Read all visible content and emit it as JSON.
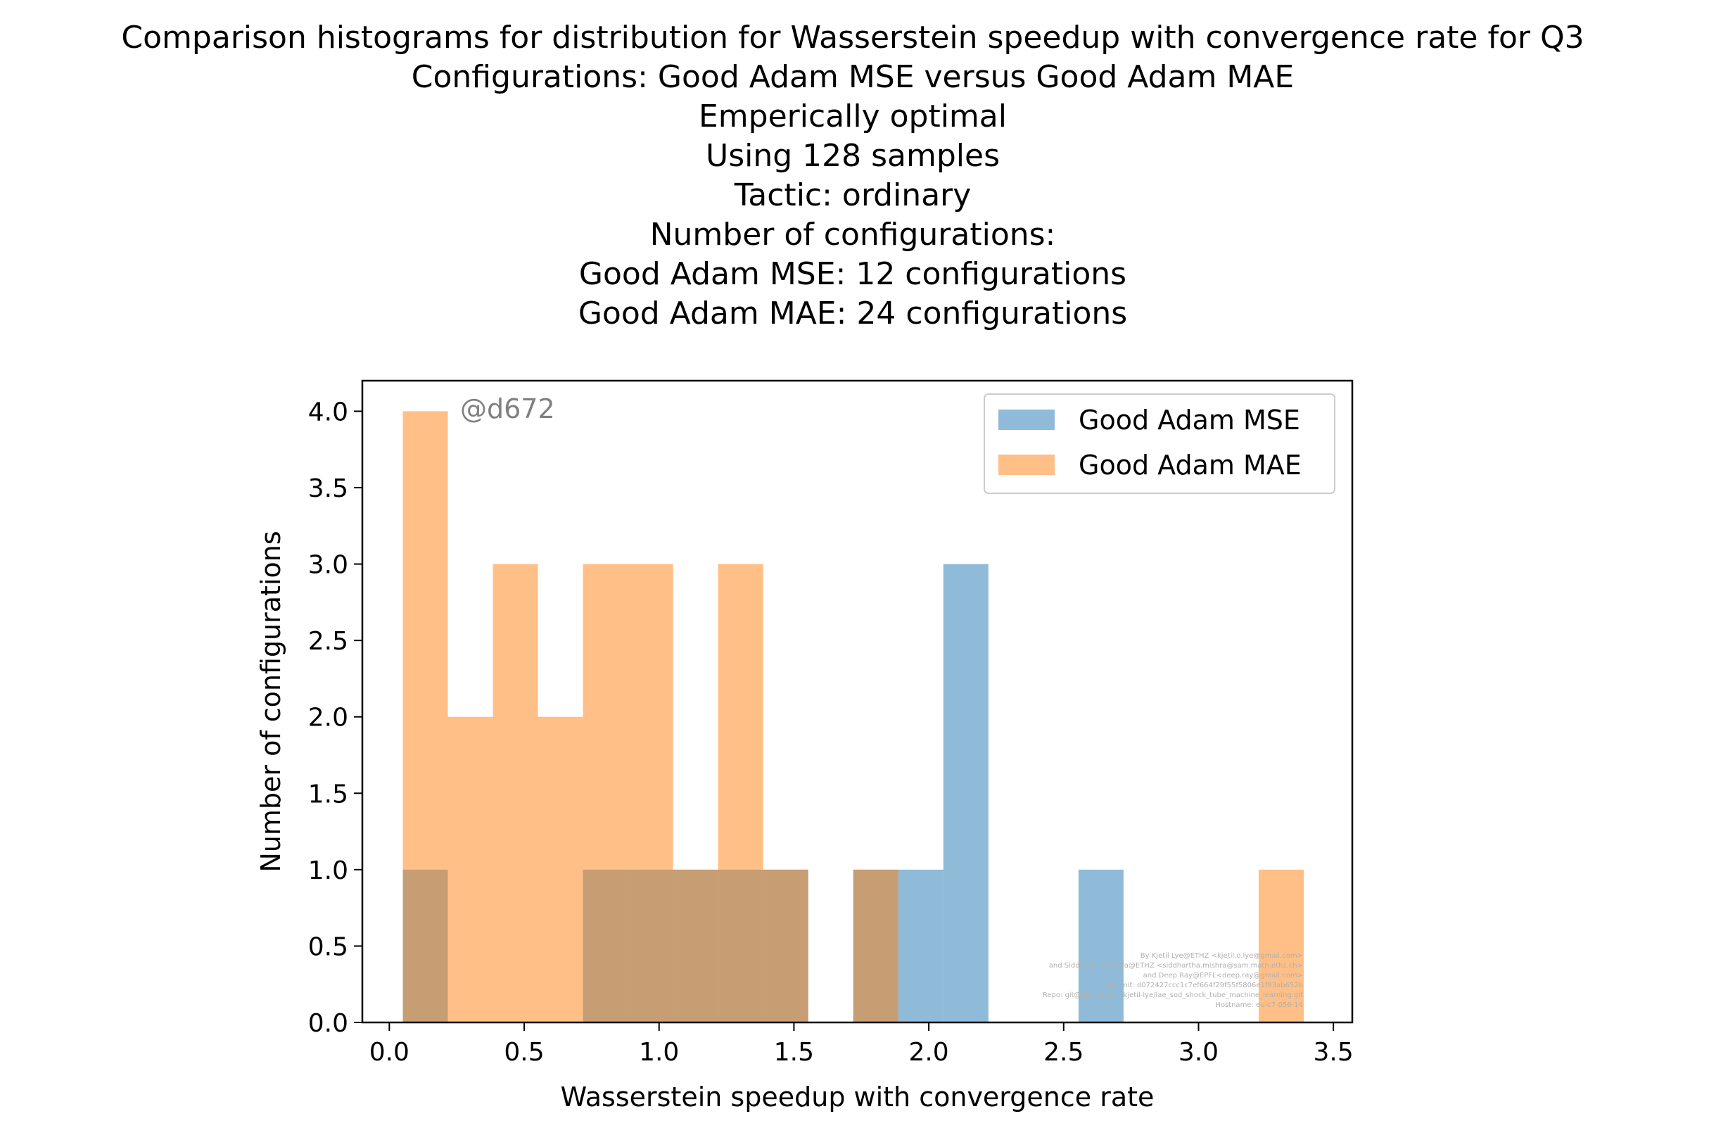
{
  "chart_data": {
    "type": "bar",
    "title_lines": [
      "Comparison histograms for distribution for Wasserstein speedup with convergence rate for Q3",
      "Configurations: Good Adam MSE versus Good Adam MAE",
      "Emperically optimal",
      "Using 128 samples",
      "Tactic: ordinary",
      "Number of configurations:",
      "Good Adam MSE: 12 configurations",
      "Good Adam MAE: 24 configurations"
    ],
    "xlabel": "Wasserstein speedup with convergence rate",
    "ylabel": "Number of configurations",
    "xlim": [
      -0.1,
      3.57
    ],
    "ylim": [
      0,
      4.2
    ],
    "xticks": [
      "0.0",
      "0.5",
      "1.0",
      "1.5",
      "2.0",
      "2.5",
      "3.0",
      "3.5"
    ],
    "yticks": [
      "0.0",
      "0.5",
      "1.0",
      "1.5",
      "2.0",
      "2.5",
      "3.0",
      "3.5",
      "4.0"
    ],
    "grid": false,
    "legend_position": "upper right",
    "series": [
      {
        "name": "Good Adam MSE",
        "color": "#1f77b4",
        "alpha": 0.5,
        "bins": [
          {
            "x0": 0.05,
            "x1": 0.217,
            "count": 1
          },
          {
            "x0": 0.217,
            "x1": 0.384,
            "count": 0
          },
          {
            "x0": 0.384,
            "x1": 0.551,
            "count": 0
          },
          {
            "x0": 0.551,
            "x1": 0.718,
            "count": 0
          },
          {
            "x0": 0.718,
            "x1": 0.885,
            "count": 1
          },
          {
            "x0": 0.885,
            "x1": 1.052,
            "count": 1
          },
          {
            "x0": 1.052,
            "x1": 1.219,
            "count": 1
          },
          {
            "x0": 1.219,
            "x1": 1.386,
            "count": 1
          },
          {
            "x0": 1.386,
            "x1": 1.553,
            "count": 1
          },
          {
            "x0": 1.553,
            "x1": 1.72,
            "count": 0
          },
          {
            "x0": 1.72,
            "x1": 1.887,
            "count": 1
          },
          {
            "x0": 1.887,
            "x1": 2.054,
            "count": 1
          },
          {
            "x0": 2.054,
            "x1": 2.221,
            "count": 3
          },
          {
            "x0": 2.221,
            "x1": 2.388,
            "count": 0
          },
          {
            "x0": 2.388,
            "x1": 2.555,
            "count": 0
          },
          {
            "x0": 2.555,
            "x1": 2.722,
            "count": 1
          }
        ]
      },
      {
        "name": "Good Adam MAE",
        "color": "#ff7f0e",
        "alpha": 0.5,
        "bins": [
          {
            "x0": 0.05,
            "x1": 0.217,
            "count": 4
          },
          {
            "x0": 0.217,
            "x1": 0.384,
            "count": 2
          },
          {
            "x0": 0.384,
            "x1": 0.551,
            "count": 3
          },
          {
            "x0": 0.551,
            "x1": 0.718,
            "count": 2
          },
          {
            "x0": 0.718,
            "x1": 0.885,
            "count": 3
          },
          {
            "x0": 0.885,
            "x1": 1.052,
            "count": 3
          },
          {
            "x0": 1.052,
            "x1": 1.219,
            "count": 1
          },
          {
            "x0": 1.219,
            "x1": 1.386,
            "count": 3
          },
          {
            "x0": 1.386,
            "x1": 1.553,
            "count": 1
          },
          {
            "x0": 1.553,
            "x1": 1.72,
            "count": 0
          },
          {
            "x0": 1.72,
            "x1": 1.887,
            "count": 1
          },
          {
            "x0": 1.887,
            "x1": 2.054,
            "count": 0
          },
          {
            "x0": 2.054,
            "x1": 2.221,
            "count": 0
          },
          {
            "x0": 2.221,
            "x1": 2.388,
            "count": 0
          },
          {
            "x0": 2.388,
            "x1": 2.555,
            "count": 0
          },
          {
            "x0": 2.555,
            "x1": 2.722,
            "count": 0
          },
          {
            "x0": 2.722,
            "x1": 2.889,
            "count": 0
          },
          {
            "x0": 2.889,
            "x1": 3.056,
            "count": 0
          },
          {
            "x0": 3.056,
            "x1": 3.223,
            "count": 0
          },
          {
            "x0": 3.223,
            "x1": 3.39,
            "count": 1
          }
        ]
      }
    ],
    "watermark": "@d672",
    "credits": [
      "By Kjetil Lye@ETHZ <kjetil.o.lye@gmail.com>",
      "and Siddhartha Mishra@ETHZ <siddhartha.mishra@sam.math.ethz.ch>",
      "and Deep Ray@EPFL<deep.ray@gmail.com>",
      "Commit: d072427ccc1c7ef664f29f55f5806e1f93ab652b",
      "Repo: git@github.com:kjetil-lye/lae_sod_shock_tube_machine_learning.git",
      "Hostname: eu-c7-056-14"
    ]
  }
}
